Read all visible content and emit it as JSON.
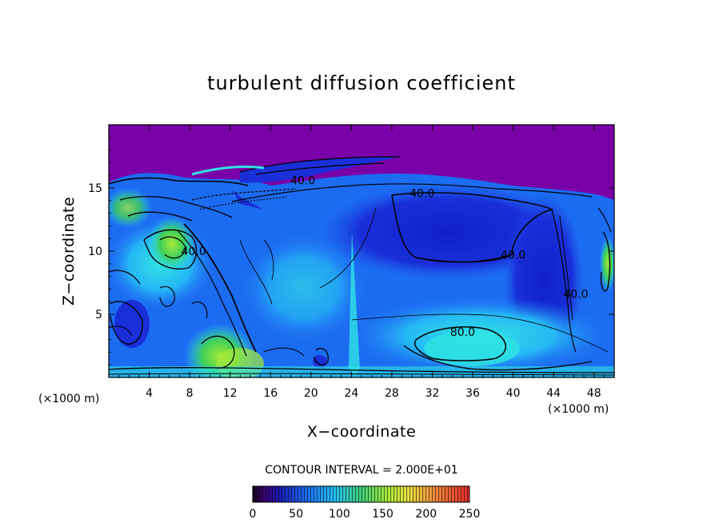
{
  "chart_data": {
    "type": "heatmap",
    "title": "turbulent diffusion coefficient",
    "xlabel": "X−coordinate",
    "ylabel": "Z−coordinate",
    "x_unit": "(×1000 m)",
    "z_unit": "(×1000 m)",
    "xlim": [
      0,
      50
    ],
    "ylim": [
      0,
      20
    ],
    "x_ticks": [
      4,
      8,
      12,
      16,
      20,
      24,
      28,
      32,
      36,
      40,
      44,
      48
    ],
    "y_ticks": [
      5,
      10,
      15
    ],
    "contour_interval_text": "CONTOUR INTERVAL = 2.000E+01",
    "contour_interval": 20,
    "contour_labels": [
      {
        "text": "40.0",
        "x": 31,
        "z": 14.6
      },
      {
        "text": "40.0",
        "x": 40,
        "z": 9.7
      },
      {
        "text": "40.0",
        "x": 46.2,
        "z": 6.6
      },
      {
        "text": "80.0",
        "x": 35,
        "z": 3.6
      },
      {
        "text": "40.0",
        "x": 19.2,
        "z": 15.6
      },
      {
        "text": "40.0",
        "x": 8.4,
        "z": 10
      }
    ],
    "colorbar": {
      "min": 0,
      "max": 250,
      "ticks": [
        0,
        50,
        100,
        150,
        200,
        250
      ]
    },
    "colors": {
      "sky": "#7a00a8",
      "deep_blue": "#1a2fd8",
      "mid_blue": "#1c6cf2",
      "light_blue": "#26b8f5",
      "cyan": "#2fe3e3",
      "green": "#3fd05a",
      "lime": "#a6e83a"
    }
  }
}
